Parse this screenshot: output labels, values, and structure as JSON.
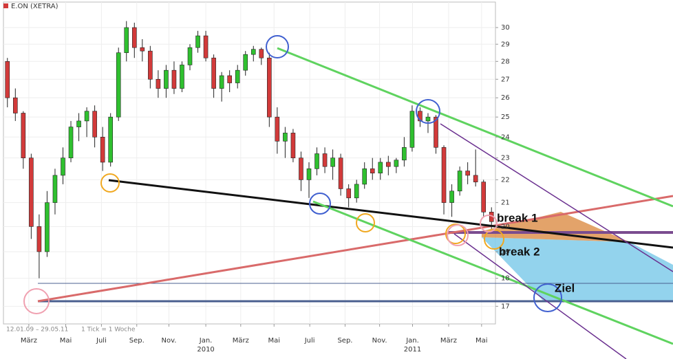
{
  "chart_data": {
    "type": "candlestick",
    "title": "E.ON (XETRA)",
    "footer_range": "12.01.09 – 29.05.11",
    "footer_tick": "1 Tick = 1 Woche",
    "log_scale": true,
    "grid": true,
    "up_color": "#2fc02f",
    "down_color": "#d23a3a",
    "xlim": [
      0,
      124
    ],
    "ylim": [
      16.4,
      31.6
    ],
    "yticks": [
      17,
      18,
      19,
      20,
      21,
      22,
      23,
      24,
      25,
      26,
      27,
      28,
      29,
      30
    ],
    "xticks": [
      {
        "value": 6.4,
        "label": "März"
      },
      {
        "value": 15.7,
        "label": "Mai"
      },
      {
        "value": 24.7,
        "label": "Juli"
      },
      {
        "value": 33.6,
        "label": "Sep."
      },
      {
        "value": 41.7,
        "label": "Nov."
      },
      {
        "value": 51,
        "label": "Jan."
      },
      {
        "value": 59.8,
        "label": "März"
      },
      {
        "value": 68.2,
        "label": "Mai"
      },
      {
        "value": 77.2,
        "label": "Juli"
      },
      {
        "value": 86.1,
        "label": "Sep."
      },
      {
        "value": 94.8,
        "label": "Nov."
      },
      {
        "value": 103.1,
        "label": "Jan."
      },
      {
        "value": 112.2,
        "label": "März"
      },
      {
        "value": 120.5,
        "label": "Mai"
      }
    ],
    "year_labels": [
      {
        "value": 51,
        "label": "2010"
      },
      {
        "value": 103.1,
        "label": "2011"
      }
    ],
    "x": [
      1,
      3,
      5,
      7,
      9,
      11,
      13,
      15,
      17,
      19,
      21,
      23,
      25,
      27,
      29,
      31,
      33,
      35,
      37,
      39,
      41,
      43,
      45,
      47,
      49,
      51,
      53,
      55,
      57,
      59,
      61,
      63,
      65,
      67,
      69,
      71,
      73,
      75,
      77,
      79,
      81,
      83,
      85,
      87,
      89,
      91,
      93,
      95,
      97,
      99,
      101,
      103,
      105,
      107,
      109,
      111,
      113,
      115,
      117,
      119,
      121,
      123
    ],
    "open": [
      28.0,
      26.0,
      25.2,
      23.0,
      20.0,
      19.0,
      21.0,
      22.2,
      23.0,
      24.5,
      24.8,
      25.3,
      24.0,
      22.8,
      25.0,
      28.5,
      30.0,
      28.8,
      28.6,
      27.0,
      26.5,
      27.5,
      26.5,
      27.8,
      28.8,
      29.5,
      28.2,
      26.5,
      27.2,
      26.8,
      27.5,
      28.4,
      28.7,
      28.2,
      25.0,
      23.8,
      24.2,
      23.0,
      22.0,
      22.5,
      23.2,
      22.6,
      23.0,
      21.6,
      21.2,
      21.8,
      22.5,
      22.3,
      22.8,
      22.6,
      22.9,
      23.5,
      25.3,
      24.8,
      25.0,
      23.5,
      21.0,
      21.5,
      22.4,
      22.2,
      21.9,
      20.6
    ],
    "high": [
      28.2,
      26.5,
      25.3,
      23.2,
      20.5,
      21.5,
      22.5,
      23.5,
      24.8,
      25.2,
      25.5,
      25.6,
      24.5,
      25.2,
      28.8,
      30.4,
      30.3,
      29.3,
      28.9,
      27.5,
      27.8,
      28.0,
      28.0,
      29.0,
      29.8,
      29.8,
      28.4,
      27.4,
      27.5,
      27.8,
      28.6,
      28.9,
      28.8,
      28.5,
      25.5,
      24.5,
      24.4,
      23.3,
      22.8,
      23.5,
      23.5,
      23.4,
      23.2,
      21.8,
      22.0,
      22.8,
      23.0,
      23.0,
      23.1,
      23.0,
      24.0,
      25.6,
      25.5,
      25.2,
      25.1,
      23.6,
      21.8,
      22.6,
      22.8,
      23.4,
      22.0,
      20.8
    ],
    "low": [
      25.5,
      24.8,
      22.5,
      19.5,
      18.0,
      18.8,
      20.5,
      21.8,
      22.8,
      23.8,
      24.0,
      23.5,
      22.4,
      22.6,
      24.8,
      28.0,
      28.2,
      28.0,
      26.5,
      26.0,
      26.0,
      26.2,
      26.3,
      27.5,
      28.5,
      28.0,
      26.0,
      25.8,
      26.3,
      26.5,
      27.2,
      28.0,
      27.8,
      24.5,
      23.2,
      23.0,
      22.8,
      21.5,
      21.2,
      22.2,
      22.3,
      22.0,
      21.3,
      20.8,
      21.0,
      21.6,
      22.0,
      22.0,
      22.2,
      22.3,
      22.6,
      23.3,
      24.5,
      24.2,
      23.2,
      20.5,
      20.4,
      21.3,
      21.8,
      21.7,
      20.4,
      19.8
    ],
    "close": [
      26.0,
      25.2,
      23.0,
      20.0,
      19.0,
      21.0,
      22.2,
      23.0,
      24.5,
      24.8,
      25.3,
      24.0,
      22.8,
      25.0,
      28.5,
      30.0,
      28.8,
      28.6,
      27.0,
      26.5,
      27.5,
      26.5,
      27.8,
      28.8,
      29.5,
      28.2,
      26.5,
      27.2,
      26.8,
      27.5,
      28.4,
      28.7,
      28.2,
      25.0,
      23.8,
      24.2,
      23.0,
      22.0,
      22.5,
      23.2,
      22.6,
      23.0,
      21.6,
      21.2,
      21.8,
      22.5,
      22.3,
      22.8,
      22.6,
      22.9,
      23.5,
      25.3,
      24.8,
      25.0,
      23.5,
      21.0,
      21.5,
      22.4,
      22.2,
      21.9,
      20.6,
      20.2
    ],
    "annotations": [
      "break 1",
      "break 2",
      "Ziel"
    ]
  }
}
